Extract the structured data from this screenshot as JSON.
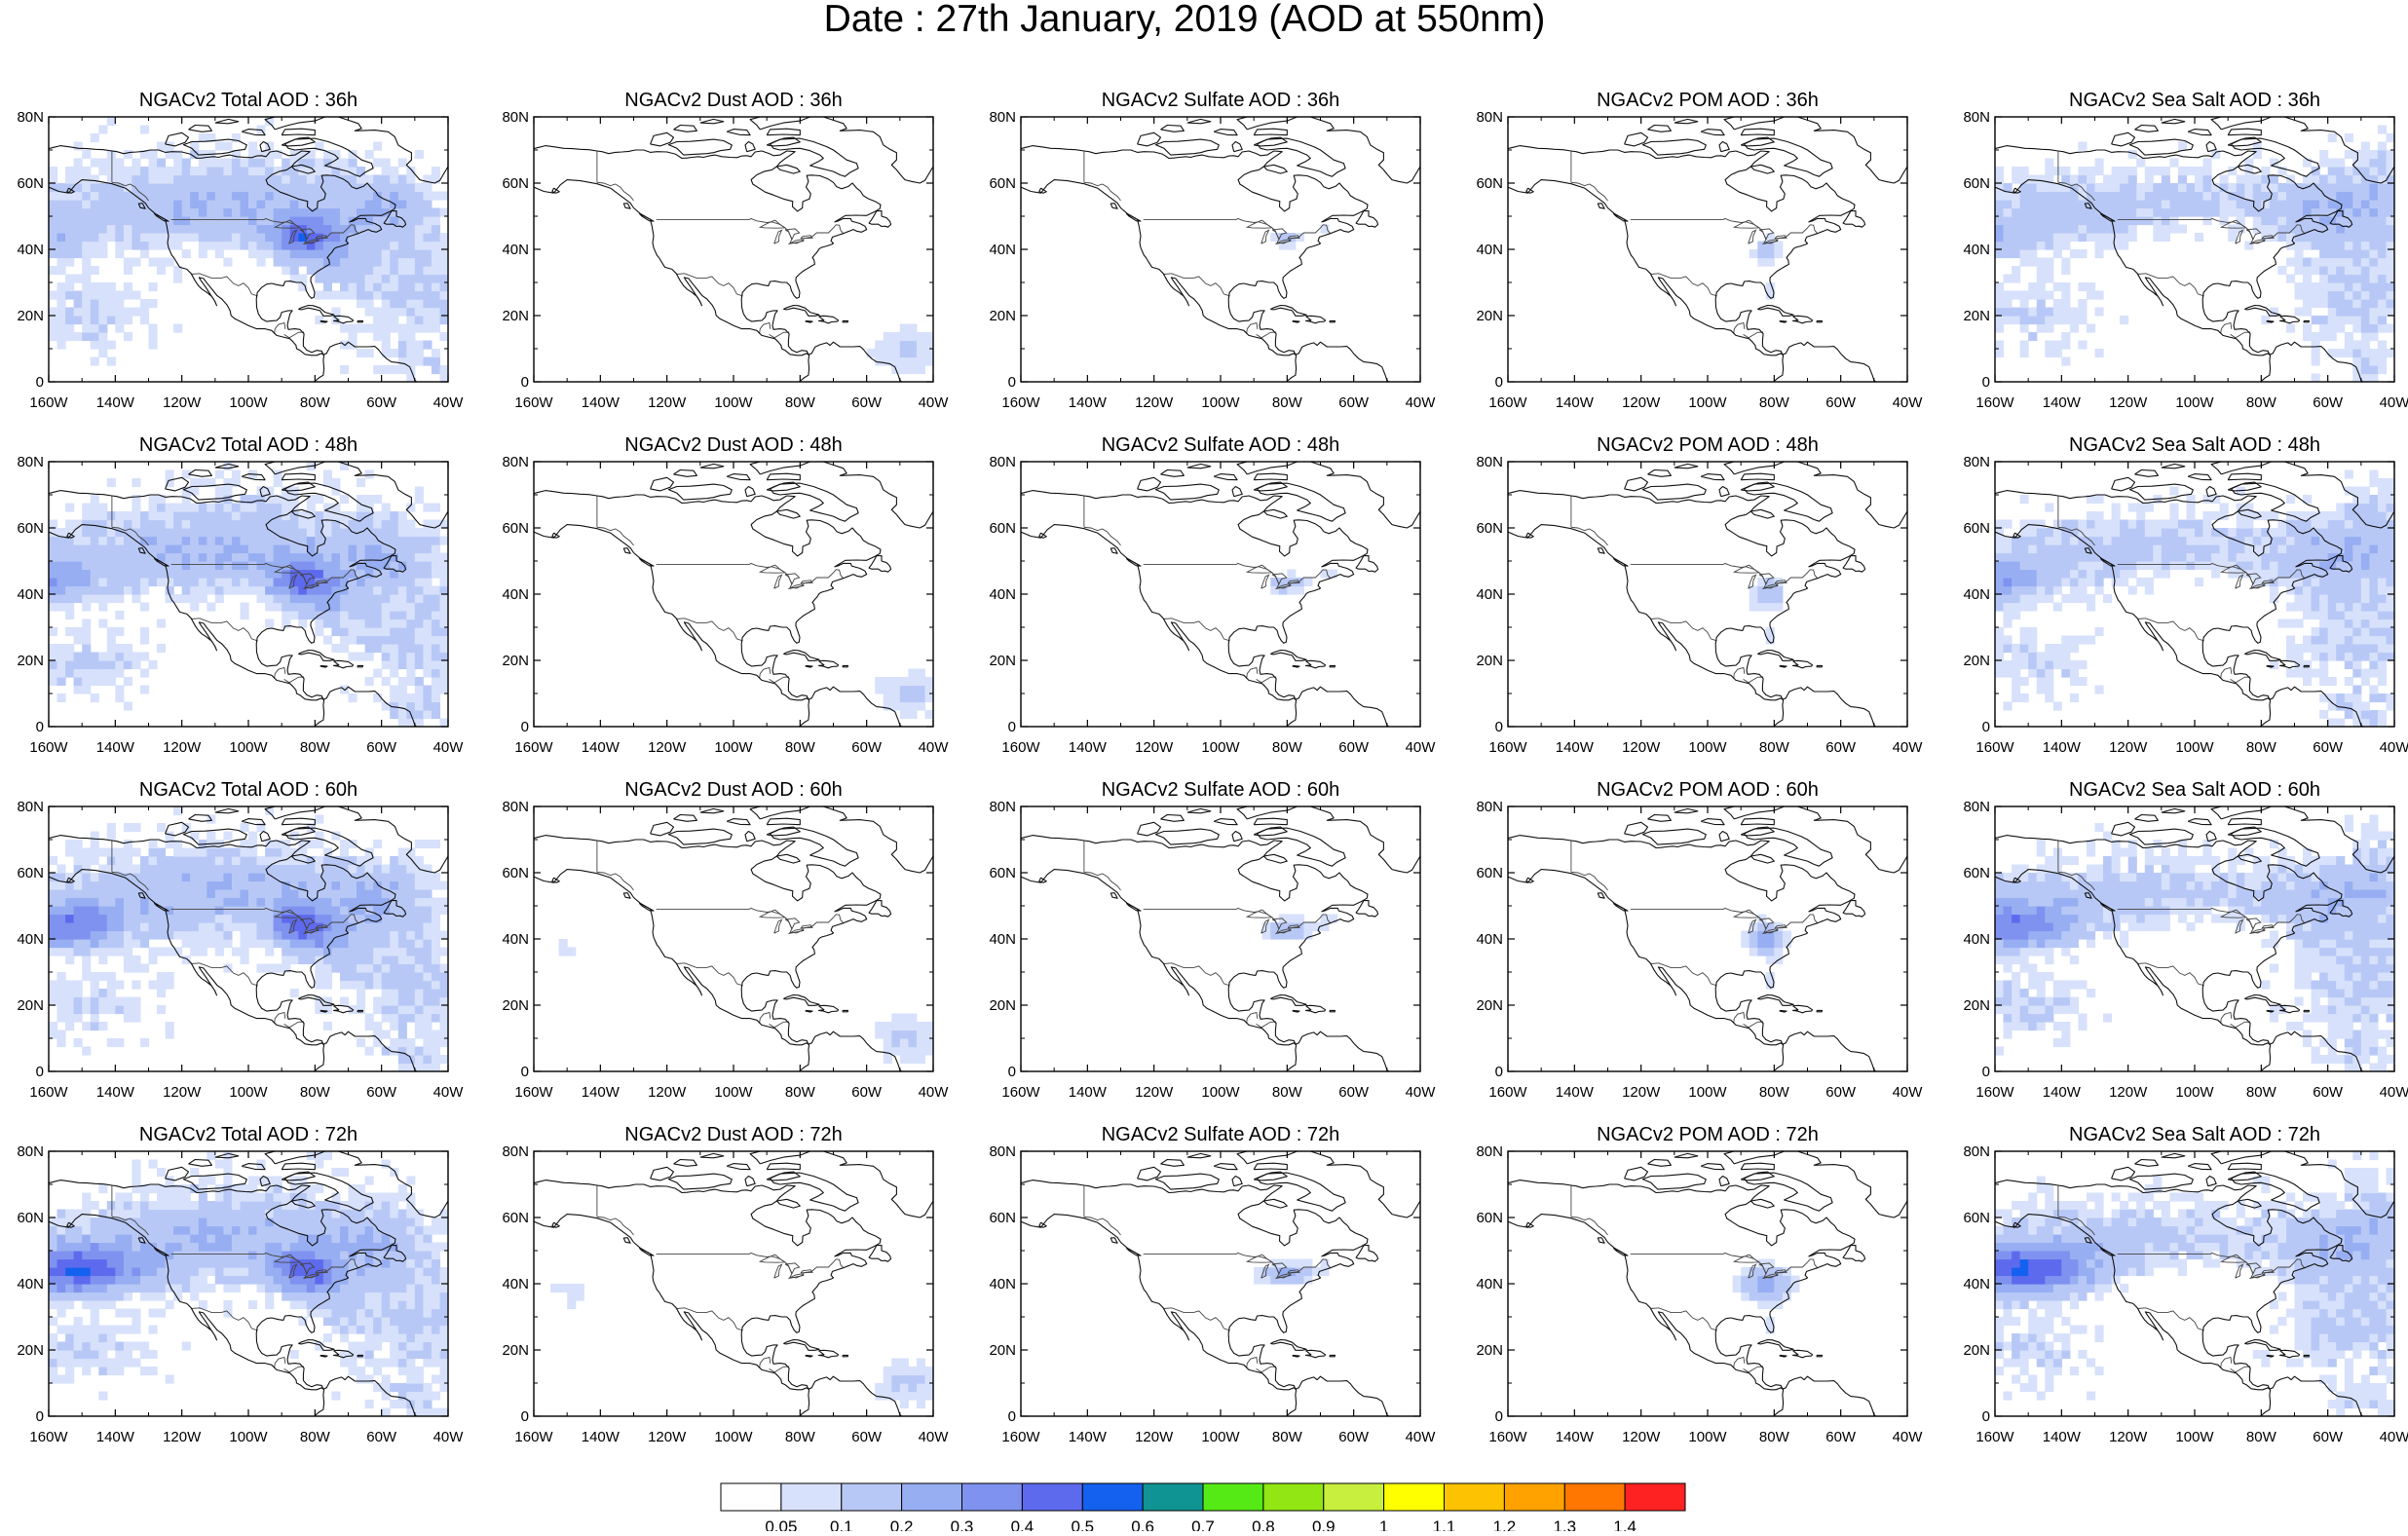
{
  "title": "Date : 27th January, 2019 (AOD at 550nm)",
  "columns": [
    {
      "key": "total",
      "kind": "total"
    },
    {
      "key": "dust",
      "kind": "dust"
    },
    {
      "key": "sulfate",
      "kind": "sulfate"
    },
    {
      "key": "pom",
      "kind": "pom"
    },
    {
      "key": "seasalt",
      "kind": "seasalt"
    }
  ],
  "panel_titles": [
    [
      "NGACv2 Total AOD : 36h",
      "NGACv2 Dust AOD : 36h",
      "NGACv2 Sulfate AOD : 36h",
      "NGACv2 POM AOD : 36h",
      "NGACv2 Sea Salt AOD : 36h"
    ],
    [
      "NGACv2 Total AOD : 48h",
      "NGACv2 Dust AOD : 48h",
      "NGACv2 Sulfate AOD : 48h",
      "NGACv2 POM AOD : 48h",
      "NGACv2 Sea Salt AOD : 48h"
    ],
    [
      "NGACv2 Total AOD : 60h",
      "NGACv2 Dust AOD : 60h",
      "NGACv2 Sulfate AOD : 60h",
      "NGACv2 POM AOD : 60h",
      "NGACv2 Sea Salt AOD : 60h"
    ],
    [
      "NGACv2 Total AOD : 72h",
      "NGACv2 Dust AOD : 72h",
      "NGACv2 Sulfate AOD : 72h",
      "NGACv2 POM AOD : 72h",
      "NGACv2 Sea Salt  AOD : 72h"
    ]
  ],
  "map": {
    "lon_range": [
      -160,
      -40
    ],
    "lat_range": [
      0,
      80
    ],
    "lon_ticks": [
      "160W",
      "140W",
      "120W",
      "100W",
      "80W",
      "60W",
      "40W"
    ],
    "lat_ticks": [
      "0",
      "20N",
      "40N",
      "60N",
      "80N"
    ]
  },
  "colorbar": {
    "colors": [
      "#ffffff",
      "#d7e1fb",
      "#b8c8f6",
      "#97aef2",
      "#7f92ef",
      "#5e6aed",
      "#1461ef",
      "#109393",
      "#55ea15",
      "#92e613",
      "#c8ef3d",
      "#ffff00",
      "#fdc202",
      "#ffa200",
      "#ff7700",
      "#ff2222"
    ],
    "labels": [
      "0.05",
      "0.1",
      "0.2",
      "0.3",
      "0.4",
      "0.5",
      "0.6",
      "0.7",
      "0.8",
      "0.9",
      "1",
      "1.1",
      "1.2",
      "1.3",
      "1.4"
    ]
  },
  "coast_color": "#111111",
  "border_color": "#444444"
}
